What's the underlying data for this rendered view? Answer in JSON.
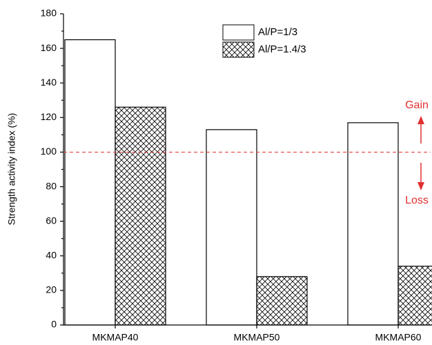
{
  "chart_data": {
    "type": "bar",
    "y_label": "Strength activity index (%)",
    "categories": [
      "MKMAP40",
      "MKMAP50",
      "MKMAP60"
    ],
    "series": [
      {
        "name": "Al/P=1/3",
        "color": "#ffffff",
        "pattern": "none",
        "values": [
          165,
          113,
          117
        ]
      },
      {
        "name": "Al/P=1.4/3",
        "color": "#ffffff",
        "pattern": "crosshatch",
        "values": [
          126,
          28,
          34
        ]
      }
    ],
    "ylim": [
      0,
      180
    ],
    "yticks": [
      0,
      20,
      40,
      60,
      80,
      100,
      120,
      140,
      160,
      180
    ],
    "reference_line": {
      "value": 100,
      "color": "#e03030"
    },
    "annotations": [
      {
        "text": "Gain",
        "color": "#e03030"
      },
      {
        "text": "Loss",
        "color": "#e03030"
      }
    ],
    "legend": "top-right"
  }
}
